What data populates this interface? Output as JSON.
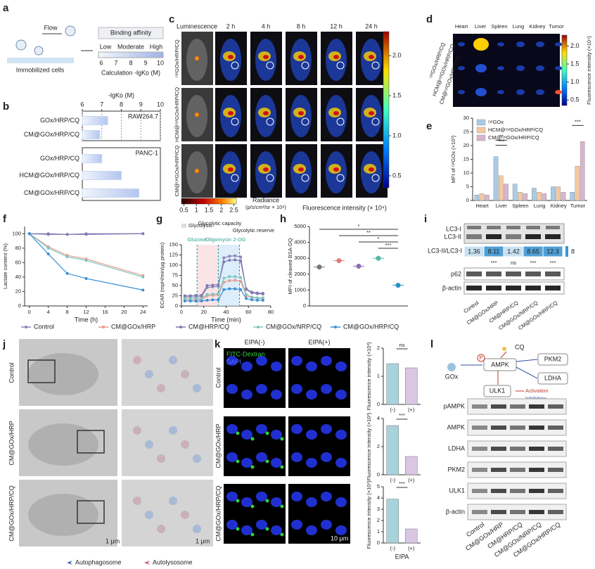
{
  "panel_labels": [
    "a",
    "b",
    "c",
    "d",
    "e",
    "f",
    "g",
    "h",
    "i",
    "j",
    "k",
    "l"
  ],
  "a": {
    "flow": "Flow",
    "cells": "Immobilized cells",
    "title": "Binding affinity",
    "levels": [
      "Low",
      "Moderate",
      "High"
    ],
    "scale": [
      6,
      7,
      8,
      9,
      10
    ],
    "calculation": "Calculation  -lgKᴅ (M)"
  },
  "c": {
    "columns": [
      "Luminescence",
      "2 h",
      "4 h",
      "8 h",
      "12 h",
      "24 h"
    ],
    "rows": [
      "ᶜʸᵗGOx/HRP/CQ",
      "HCM@ᶜʸᵗGOx/HRP/CQ",
      "CM@ᶜʸᵗGOx/HRP/CQ"
    ],
    "radiance_bar": {
      "lim": [
        0.4,
        2.6
      ],
      "ticks": [
        0.5,
        1,
        1.5,
        2,
        2.5
      ],
      "label": "Radiance",
      "unit": "(p/s/cm²/sr × 10⁸)"
    },
    "fluorescence_bar": {
      "lim": [
        0.35,
        2.3
      ],
      "ticks": [
        0.5,
        {
          "value": 1,
          "label": "1.0"
        },
        1.5,
        {
          "value": 2,
          "label": "2.0"
        }
      ],
      "label": "Fluorescence intensity (× 10⁴)"
    }
  },
  "d": {
    "organs": [
      "Heart",
      "Liver",
      "Spleen",
      "Lung",
      "Kidney",
      "Tumor"
    ],
    "rows": [
      "ᶜʸᵗGOx/HRP/CQ",
      "HCM@ᶜʸᵗGOx/HRP/CQ",
      "CM@ᶜʸᵗGOx/HRP/CQ"
    ],
    "colorbar": {
      "lim": [
        0.35,
        2.3
      ],
      "ticks": [
        0.5,
        {
          "value": 1,
          "label": "1.0"
        },
        1.5,
        {
          "value": 2,
          "label": "2.0"
        }
      ],
      "label": "Fluorescence intensity (×10⁴)"
    }
  },
  "i": {
    "bands": [
      "LC3-I",
      "LC3-II"
    ],
    "ratio_label": "LC3-II/LC3-I",
    "ratios": [
      1.36,
      8.11,
      1.42,
      8.65,
      12.3
    ],
    "ratio_scale_max": 8,
    "significance": [
      "***",
      "ns",
      "***",
      "***"
    ],
    "proteins": [
      "p62",
      "β-actin"
    ],
    "lanes": [
      "Control",
      "CM@GOx/HRP",
      "CM@HRP/CQ",
      "CM@GOx/NRP/CQ",
      "CM@GOx/HRP/CQ"
    ]
  },
  "j": {
    "rows": [
      "Control",
      "CM@GOx/HRP",
      "CM@GOx/HRP/CQ"
    ],
    "scale_bars": [
      "1 μm",
      "1 μm"
    ],
    "legend": [
      "Autophagosome",
      "Autolysosome"
    ]
  },
  "k": {
    "columns": [
      "EIPA(-)",
      "EIPA(+)"
    ],
    "stains": [
      "FITC-Dextran",
      "DAPI"
    ],
    "rows": [
      "Control",
      "CM@GOx/HRP",
      "CM@GOx/HRP/CQ"
    ],
    "scale_bar": "10 μm"
  },
  "l": {
    "diagram": {
      "drug": "CQ",
      "enzyme": "GOx",
      "hub": "AMPK",
      "phospho": "P",
      "targets": [
        "PKM2",
        "LDHA"
      ],
      "ulk1": "ULK1",
      "legend": [
        "Activation",
        "Inhibition"
      ]
    },
    "proteins": [
      "pAMPK",
      "AMPK",
      "LDHA",
      "PKM2",
      "ULK1",
      "β-actin"
    ],
    "lanes": [
      "Control",
      "CM@GOx/HRP",
      "CM@HRP/CQ",
      "CM@GOx/NRP/CQ",
      "CM@GOx/HRP/CQ"
    ]
  },
  "chart_data": [
    {
      "type": "bar",
      "orientation": "horizontal",
      "title": "RAW264.7",
      "x_label": "-lgKᴅ (M)",
      "categories": [
        "GOx/HRP/CQ",
        "CM@GOx/HRP/CQ"
      ],
      "values": [
        7.3,
        6.9
      ],
      "xlim": [
        6,
        10
      ],
      "xticks": [
        6,
        7,
        8,
        9,
        10
      ],
      "color": "#c9d7f3",
      "grid": true
    },
    {
      "type": "bar",
      "orientation": "horizontal",
      "title": "PANC-1",
      "categories": [
        "GOx/HRP/CQ",
        "HCM@GOx/HRP/CQ",
        "CM@GOx/HRP/CQ"
      ],
      "values": [
        7.0,
        8.0,
        8.9
      ],
      "xlim": [
        6,
        10
      ],
      "color": "#c9d7f3"
    },
    {
      "type": "bar",
      "categories": [
        "Heart",
        "Liver",
        "Spleen",
        "Lung",
        "Kidney",
        "Tumor"
      ],
      "series": [
        {
          "name": "ᶜʸᵗGOx",
          "color": "#a9cbe6",
          "values": [
            2,
            16,
            6,
            4.5,
            5,
            3
          ]
        },
        {
          "name": "HCM@ᶜʸᵗGOx/HRP/CQ",
          "color": "#f3c9a2",
          "values": [
            2.5,
            9,
            3,
            3,
            5,
            12.5
          ]
        },
        {
          "name": "CM@ᶜʸᵗGOx/HRP/CQ",
          "color": "#d8b5cf",
          "values": [
            2,
            6,
            2.5,
            2.5,
            3,
            21.5
          ]
        }
      ],
      "ylim": [
        0,
        30
      ],
      "yticks": [
        0,
        5,
        10,
        15,
        20,
        25,
        30
      ],
      "y_label": "MFI of ᶜʸᵗGOx (×10³)",
      "annotations": [
        "**",
        "***",
        "***"
      ],
      "legend": "upper left"
    },
    {
      "type": "line",
      "x": [
        0,
        4,
        8,
        12,
        24
      ],
      "xlim": [
        -1,
        25
      ],
      "xticks": [
        0,
        4,
        8,
        12,
        16,
        20,
        24
      ],
      "ylim": [
        0,
        110
      ],
      "yticks": [
        0,
        20,
        40,
        60,
        80,
        100
      ],
      "x_label": "Time (h)",
      "y_label": "Lactate content (%)",
      "legend": "bottom",
      "series": [
        {
          "name": "Control",
          "color": "#8a86b8",
          "values": [
            100,
            100,
            99,
            100,
            100
          ]
        },
        {
          "name": "CM@GOx/HRP",
          "color": "#e89a8a",
          "values": [
            100,
            82,
            70,
            65,
            42
          ]
        },
        {
          "name": "CM@HRP/CQ",
          "color": "#7b7bb3",
          "values": [
            100,
            99,
            99,
            99,
            100
          ]
        },
        {
          "name": "CM@GOx/NRP/CQ",
          "color": "#7fc7c0",
          "values": [
            100,
            80,
            68,
            63,
            40
          ]
        },
        {
          "name": "CM@GOx/HRP/CQ",
          "color": "#3a8fd6",
          "values": [
            100,
            72,
            45,
            38,
            22
          ]
        }
      ]
    },
    {
      "type": "line",
      "x": [
        3,
        8,
        13,
        18,
        23,
        28,
        33,
        38,
        43,
        48,
        53,
        58,
        63,
        68,
        73
      ],
      "xlim": [
        0,
        80
      ],
      "xticks": [
        0,
        20,
        40,
        60,
        80
      ],
      "ylim": [
        0,
        150
      ],
      "yticks": [
        0,
        25,
        50,
        75,
        100,
        125,
        150
      ],
      "x_label": "Time (min)",
      "y_label": "ECAR (mpH/min/μg protein)",
      "phases": [
        "Glycolysis",
        "Glycolytic capacity",
        "Glycolytic reserve"
      ],
      "injections": [
        {
          "label": "Glucose",
          "x": 14
        },
        {
          "label": "Oligomycin",
          "x": 33
        },
        {
          "label": "2-DG",
          "x": 52
        }
      ],
      "series": [
        {
          "color": "#8a86b8",
          "values": [
            22,
            22,
            22,
            23,
            45,
            47,
            48,
            118,
            122,
            123,
            120,
            40,
            32,
            30,
            29
          ]
        },
        {
          "color": "#e89a8a",
          "values": [
            15,
            15,
            15,
            15,
            25,
            26,
            27,
            58,
            62,
            63,
            60,
            25,
            20,
            19,
            18
          ]
        },
        {
          "color": "#7b7bb3",
          "values": [
            25,
            25,
            26,
            26,
            50,
            51,
            52,
            108,
            112,
            113,
            110,
            42,
            34,
            32,
            31
          ]
        },
        {
          "color": "#7fc7c0",
          "values": [
            18,
            18,
            18,
            18,
            28,
            29,
            30,
            68,
            72,
            72,
            70,
            28,
            22,
            20,
            20
          ]
        },
        {
          "color": "#3a8fd6",
          "values": [
            12,
            12,
            12,
            12,
            14,
            15,
            15,
            40,
            42,
            42,
            40,
            18,
            15,
            14,
            14
          ]
        }
      ]
    },
    {
      "type": "dot",
      "categories": [
        null,
        null,
        null,
        null,
        null
      ],
      "values": [
        2450,
        2850,
        2500,
        3000,
        1300
      ],
      "colors": [
        "#777777",
        "#e07a7a",
        "#8a6fb0",
        "#4fb7a7",
        "#2b8fc7"
      ],
      "ylim": [
        0,
        5000
      ],
      "yticks": [
        0,
        1000,
        2000,
        3000,
        4000,
        5000
      ],
      "y_label": "MFI of cleaved BSA-DQ",
      "annotations": [
        "*",
        "**",
        "*",
        "***"
      ]
    },
    {
      "type": "bar",
      "categories": [
        "(-)",
        "(+)"
      ],
      "values": [
        1.45,
        1.3
      ],
      "colors": [
        "#a8d2dc",
        "#d8c6e3"
      ],
      "ylim": [
        0,
        2
      ],
      "yticks": [
        0,
        1,
        2
      ],
      "y_label": "Fluorescence intensity (×10³)",
      "annotations": [
        "ns"
      ]
    },
    {
      "type": "bar",
      "categories": [
        "(-)",
        "(+)"
      ],
      "values": [
        3.5,
        1.3
      ],
      "colors": [
        "#a8d2dc",
        "#d8c6e3"
      ],
      "ylim": [
        0,
        4
      ],
      "yticks": [
        0,
        2,
        4
      ],
      "y_label": "Fluorescence intensity (×10³)",
      "annotations": [
        "***"
      ]
    },
    {
      "type": "bar",
      "categories": [
        "(-)",
        "(+)"
      ],
      "values": [
        3.9,
        1.25
      ],
      "colors": [
        "#a8d2dc",
        "#d8c6e3"
      ],
      "ylim": [
        0,
        5
      ],
      "yticks": [
        0,
        1,
        2,
        3,
        4,
        5
      ],
      "y_label": "Fluorescence intensity (×10³)",
      "x_label": "EIPA",
      "annotations": [
        "***"
      ]
    }
  ]
}
